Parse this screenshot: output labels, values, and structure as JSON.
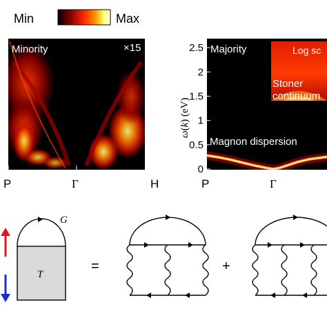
{
  "colorbar": {
    "min_label": "Min",
    "max_label": "Max",
    "colors": [
      "#000000",
      "#8b0000",
      "#ff2a00",
      "#ff9a00",
      "#ffff7a",
      "#ffffe0"
    ]
  },
  "chart_data": [
    {
      "type": "heatmap",
      "panel_label": "Minority",
      "scale_note": "×15",
      "x_ticks": [
        "P",
        "Γ",
        "H"
      ]
    },
    {
      "type": "heatmap",
      "panel_label": "Majority",
      "ylabel": "ω(k) (eV)",
      "ylim": [
        0,
        2.7
      ],
      "y_ticks": [
        0,
        0.5,
        1,
        1.5,
        2,
        2.5
      ],
      "x_ticks": [
        "P",
        "Γ"
      ],
      "inset_label": "Log sc",
      "annotations": [
        "Stoner",
        "continuum",
        "Magnon dispersion"
      ],
      "magnon_band": {
        "x": [
          0,
          0.1,
          0.2,
          0.3,
          0.4,
          0.5,
          0.55,
          0.6,
          0.65,
          0.75,
          0.85,
          1.0
        ],
        "y": [
          0.28,
          0.24,
          0.19,
          0.13,
          0.07,
          0.02,
          0.0,
          0.02,
          0.06,
          0.14,
          0.2,
          0.25
        ]
      }
    }
  ],
  "diagram": {
    "g_label": "G",
    "t_label": "T",
    "equals": "=",
    "plus": "+",
    "spin_up_color": "#e8141c",
    "spin_down_color": "#1a2bd8"
  }
}
